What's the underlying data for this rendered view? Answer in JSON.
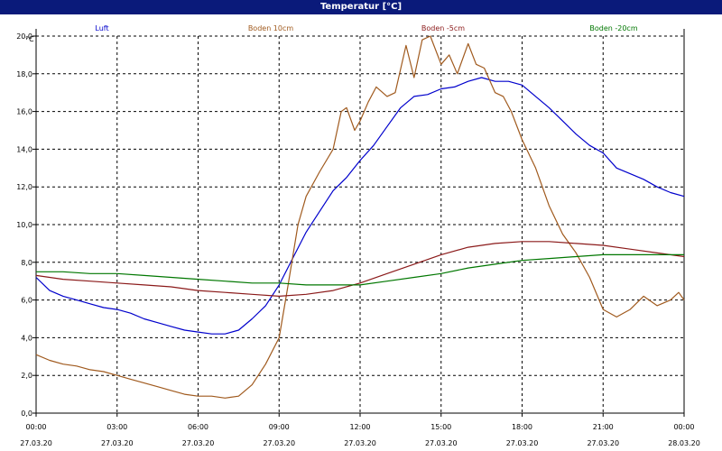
{
  "window": {
    "title": "Temperatur [°C]"
  },
  "chart_data": {
    "type": "line",
    "title": "Temperatur [°C]",
    "ylabel": "°C",
    "ylim": [
      0,
      20
    ],
    "xlim_hours": [
      0,
      24
    ],
    "grid": true,
    "legend_placement": "top",
    "y_ticks": [
      "0,0",
      "2,0",
      "4,0",
      "6,0",
      "8,0",
      "10,0",
      "12,0",
      "14,0",
      "16,0",
      "18,0",
      "20,0"
    ],
    "x_ticks": [
      {
        "time": "00:00",
        "date": "27.03.20"
      },
      {
        "time": "03:00",
        "date": "27.03.20"
      },
      {
        "time": "06:00",
        "date": "27.03.20"
      },
      {
        "time": "09:00",
        "date": "27.03.20"
      },
      {
        "time": "12:00",
        "date": "27.03.20"
      },
      {
        "time": "15:00",
        "date": "27.03.20"
      },
      {
        "time": "18:00",
        "date": "27.03.20"
      },
      {
        "time": "21:00",
        "date": "27.03.20"
      },
      {
        "time": "00:00",
        "date": "28.03.20"
      }
    ],
    "series": [
      {
        "name": "Luft",
        "color": "#0000cc",
        "x": [
          0,
          0.5,
          1,
          1.5,
          2,
          2.5,
          3,
          3.5,
          4,
          4.5,
          5,
          5.5,
          6,
          6.5,
          7,
          7.5,
          8,
          8.5,
          9,
          9.5,
          10,
          10.5,
          11,
          11.5,
          12,
          12.5,
          13,
          13.5,
          14,
          14.5,
          15,
          15.5,
          16,
          16.5,
          17,
          17.5,
          18,
          18.5,
          19,
          19.5,
          20,
          20.5,
          21,
          21.5,
          22,
          22.5,
          23,
          23.5,
          24
        ],
        "values": [
          7.2,
          6.5,
          6.2,
          6.0,
          5.8,
          5.6,
          5.5,
          5.3,
          5.0,
          4.8,
          4.6,
          4.4,
          4.3,
          4.2,
          4.2,
          4.4,
          5.0,
          5.7,
          6.8,
          8.2,
          9.6,
          10.7,
          11.8,
          12.5,
          13.4,
          14.2,
          15.2,
          16.2,
          16.8,
          16.9,
          17.2,
          17.3,
          17.6,
          17.8,
          17.6,
          17.6,
          17.4,
          16.8,
          16.2,
          15.5,
          14.8,
          14.2,
          13.8,
          13.0,
          12.7,
          12.4,
          12.0,
          11.7,
          11.5
        ]
      },
      {
        "name": "Boden 10cm",
        "color": "#a05a1e",
        "x": [
          0,
          0.5,
          1,
          1.5,
          2,
          2.5,
          3,
          3.5,
          4,
          4.5,
          5,
          5.5,
          6,
          6.5,
          7,
          7.5,
          8,
          8.5,
          9,
          9.3,
          9.7,
          10,
          10.5,
          11,
          11.3,
          11.5,
          11.8,
          12,
          12.3,
          12.6,
          13,
          13.3,
          13.7,
          14,
          14.3,
          14.6,
          15,
          15.3,
          15.6,
          16,
          16.3,
          16.6,
          17,
          17.3,
          17.6,
          18,
          18.5,
          19,
          19.5,
          20,
          20.5,
          21,
          21.5,
          22,
          22.5,
          23,
          23.5,
          23.8,
          24
        ],
        "values": [
          3.1,
          2.8,
          2.6,
          2.5,
          2.3,
          2.2,
          2.0,
          1.8,
          1.6,
          1.4,
          1.2,
          1.0,
          0.9,
          0.9,
          0.8,
          0.9,
          1.5,
          2.6,
          4.0,
          6.5,
          10.0,
          11.5,
          12.8,
          14.0,
          16.0,
          16.2,
          15.0,
          15.5,
          16.5,
          17.3,
          16.8,
          17.0,
          19.5,
          17.8,
          19.8,
          20.0,
          18.5,
          19.0,
          18.0,
          19.6,
          18.5,
          18.3,
          17.0,
          16.8,
          16.0,
          14.5,
          13.0,
          11.0,
          9.5,
          8.5,
          7.2,
          5.5,
          5.1,
          5.5,
          6.2,
          5.7,
          6.0,
          6.4,
          6.0
        ]
      },
      {
        "name": "Boden -5cm",
        "color": "#8b1a1a",
        "x": [
          0,
          1,
          2,
          3,
          4,
          5,
          6,
          7,
          8,
          9,
          10,
          11,
          12,
          13,
          14,
          15,
          16,
          17,
          18,
          19,
          20,
          21,
          22,
          23,
          24
        ],
        "values": [
          7.3,
          7.1,
          7.0,
          6.9,
          6.8,
          6.7,
          6.5,
          6.4,
          6.3,
          6.2,
          6.3,
          6.5,
          6.9,
          7.4,
          7.9,
          8.4,
          8.8,
          9.0,
          9.1,
          9.1,
          9.0,
          8.9,
          8.7,
          8.5,
          8.3
        ]
      },
      {
        "name": "Boden -20cm",
        "color": "#007700",
        "x": [
          0,
          1,
          2,
          3,
          4,
          5,
          6,
          7,
          8,
          9,
          10,
          11,
          12,
          13,
          14,
          15,
          16,
          17,
          18,
          19,
          20,
          21,
          22,
          23,
          24
        ],
        "values": [
          7.5,
          7.5,
          7.4,
          7.4,
          7.3,
          7.2,
          7.1,
          7.0,
          6.9,
          6.9,
          6.8,
          6.8,
          6.8,
          7.0,
          7.2,
          7.4,
          7.7,
          7.9,
          8.1,
          8.2,
          8.3,
          8.4,
          8.4,
          8.4,
          8.4
        ]
      }
    ]
  }
}
